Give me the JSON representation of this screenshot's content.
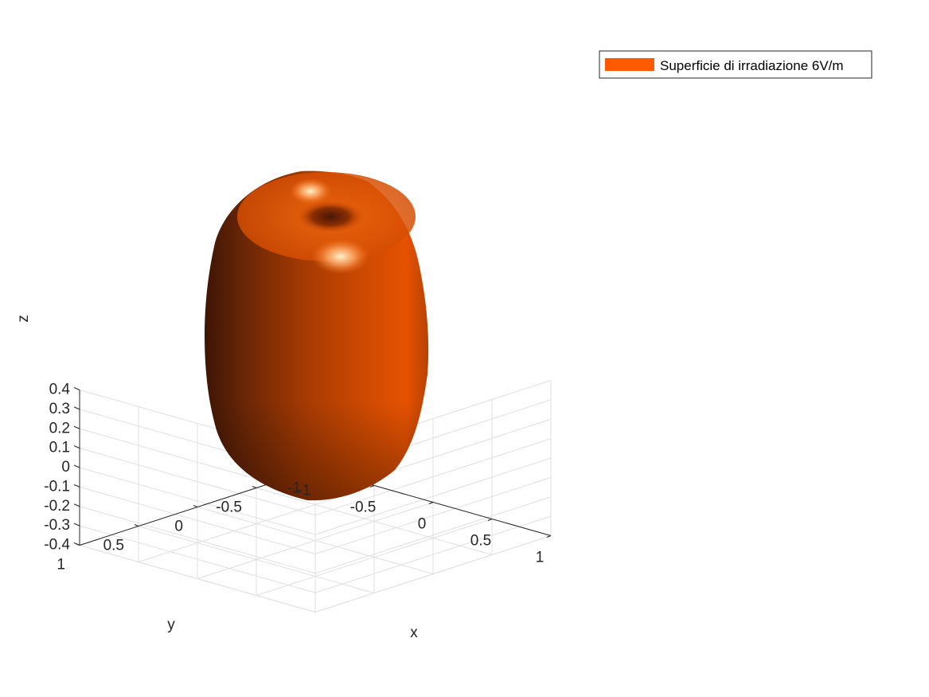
{
  "chart_data": {
    "type": "surface3d",
    "title": "",
    "xlabel": "x",
    "ylabel": "y",
    "zlabel": "z",
    "xlim": [
      -1,
      1
    ],
    "ylim": [
      -1,
      1
    ],
    "zlim": [
      -0.4,
      0.4
    ],
    "x_ticks": [
      "-1",
      "-0.5",
      "0",
      "0.5",
      "1"
    ],
    "y_ticks": [
      "-1",
      "-0.5",
      "0",
      "0.5",
      "1"
    ],
    "z_ticks": [
      "-0.4",
      "-0.3",
      "-0.2",
      "-0.1",
      "0",
      "0.1",
      "0.2",
      "0.3",
      "0.4"
    ],
    "grid": true,
    "legend": {
      "location": "top-right",
      "entries": [
        {
          "label": "Superficie di irradiazione 6V/m",
          "color": "#ff5a00"
        }
      ]
    },
    "surface": {
      "name": "Superficie di irradiazione 6V/m",
      "color": "#ff5a00",
      "shape": "toroidal-lobe",
      "max_radius": 0.5,
      "z_extent": [
        -0.36,
        0.36
      ]
    }
  }
}
